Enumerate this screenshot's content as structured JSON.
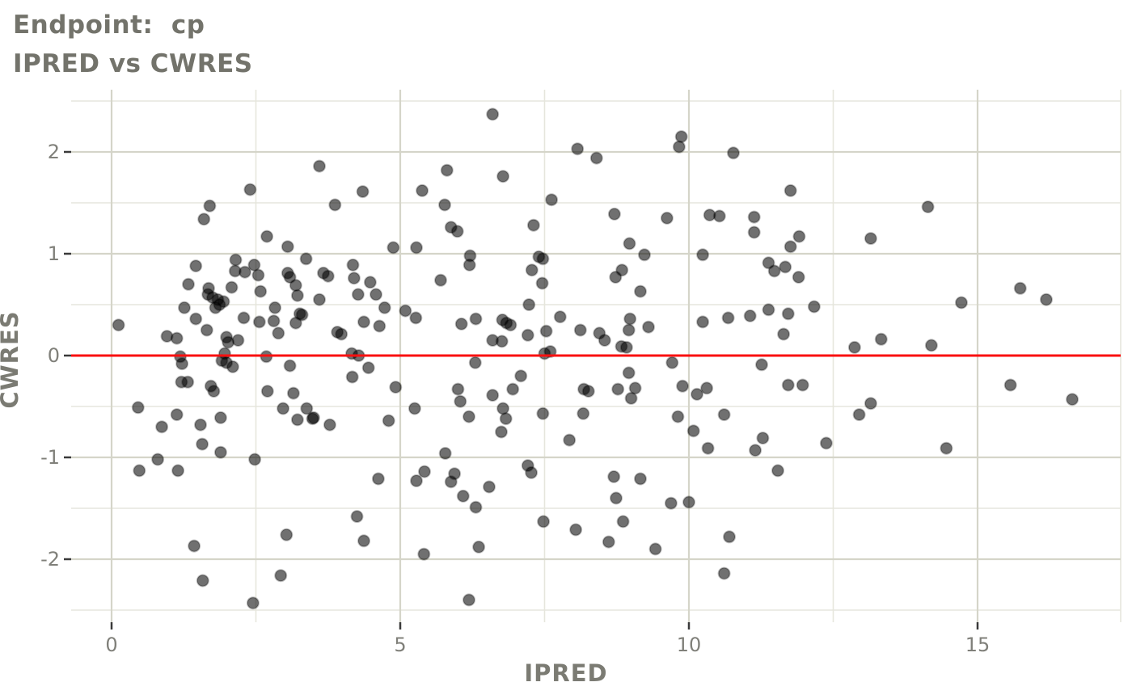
{
  "title": {
    "line1": "Endpoint:  cp",
    "line2": "IPRED vs CWRES"
  },
  "axes": {
    "x_label": "IPRED",
    "y_label": "CWRES",
    "x_tick_labels": [
      "0",
      "5",
      "10",
      "15"
    ],
    "y_tick_labels": [
      "2",
      "1",
      "0",
      "-1",
      "-2"
    ]
  },
  "colors": {
    "background": "#ffffff",
    "title_text": "#73736b",
    "axis_title_text": "#7b7b73",
    "tick_label_text": "#80807a",
    "tick_mark": "#3a3a3a",
    "grid_major": "#d5d5c9",
    "grid_minor": "#e6e6dd",
    "reference_line": "#fa1010",
    "point_fill": "#000000",
    "point_fill_opacity": 0.56,
    "point_stroke_opacity": 0.25
  },
  "chart_data": {
    "type": "scatter",
    "title": "Endpoint: cp",
    "subtitle": "IPRED vs CWRES",
    "xlabel": "IPRED",
    "ylabel": "CWRES",
    "xlim": [
      -0.74,
      17.47
    ],
    "ylim": [
      -2.61,
      2.61
    ],
    "grid": true,
    "legend": "none",
    "x_major_ticks": [
      0,
      5,
      10,
      15
    ],
    "x_minor_gridlines": [
      2.5,
      7.5,
      12.5,
      17.5
    ],
    "y_major_ticks": [
      2,
      1,
      0,
      -1,
      -2
    ],
    "y_minor_gridlines": [
      2.5,
      1.5,
      0.5,
      -0.5,
      -1.5,
      -2.5
    ],
    "reference_line_y": 0,
    "points": [
      [
        0.12,
        0.3
      ],
      [
        0.96,
        0.19
      ],
      [
        1.13,
        0.17
      ],
      [
        1.19,
        -0.01
      ],
      [
        1.22,
        -0.08
      ],
      [
        1.26,
        0.47
      ],
      [
        1.33,
        0.7
      ],
      [
        1.46,
        0.88
      ],
      [
        1.46,
        0.36
      ],
      [
        1.6,
        1.34
      ],
      [
        1.65,
        0.25
      ],
      [
        1.67,
        0.6
      ],
      [
        1.68,
        0.66
      ],
      [
        1.7,
        1.47
      ],
      [
        1.75,
        0.57
      ],
      [
        1.8,
        0.47
      ],
      [
        1.84,
        0.55
      ],
      [
        1.87,
        0.5
      ],
      [
        1.91,
        -0.05
      ],
      [
        1.94,
        0.53
      ],
      [
        1.96,
        0.02
      ],
      [
        1.99,
        0.18
      ],
      [
        1.99,
        -0.07
      ],
      [
        2.02,
        0.13
      ],
      [
        2.08,
        0.67
      ],
      [
        2.1,
        -0.11
      ],
      [
        2.14,
        0.83
      ],
      [
        2.15,
        0.94
      ],
      [
        2.19,
        0.15
      ],
      [
        2.29,
        0.37
      ],
      [
        2.31,
        0.82
      ],
      [
        2.4,
        1.63
      ],
      [
        2.47,
        0.89
      ],
      [
        2.54,
        0.79
      ],
      [
        2.56,
        0.33
      ],
      [
        2.58,
        0.63
      ],
      [
        2.68,
        -0.01
      ],
      [
        2.69,
        1.17
      ],
      [
        2.81,
        0.34
      ],
      [
        2.83,
        0.47
      ],
      [
        2.89,
        0.22
      ],
      [
        3.05,
        1.07
      ],
      [
        3.05,
        0.81
      ],
      [
        3.09,
        0.77
      ],
      [
        3.09,
        -0.1
      ],
      [
        3.19,
        0.69
      ],
      [
        3.19,
        0.32
      ],
      [
        3.22,
        0.59
      ],
      [
        3.26,
        0.41
      ],
      [
        3.3,
        0.4
      ],
      [
        3.37,
        0.95
      ],
      [
        3.6,
        1.86
      ],
      [
        3.6,
        0.55
      ],
      [
        3.67,
        0.81
      ],
      [
        3.75,
        0.78
      ],
      [
        3.87,
        1.48
      ],
      [
        3.91,
        0.23
      ],
      [
        3.98,
        0.21
      ],
      [
        4.16,
        0.02
      ],
      [
        4.28,
        0.0
      ],
      [
        4.18,
        0.89
      ],
      [
        4.2,
        0.76
      ],
      [
        4.27,
        0.6
      ],
      [
        4.35,
        1.61
      ],
      [
        4.37,
        0.33
      ],
      [
        4.45,
        -0.12
      ],
      [
        4.17,
        -0.21
      ],
      [
        4.48,
        0.72
      ],
      [
        4.58,
        0.6
      ],
      [
        4.64,
        0.29
      ],
      [
        4.73,
        0.47
      ],
      [
        4.88,
        1.06
      ],
      [
        5.09,
        0.44
      ],
      [
        5.28,
        1.06
      ],
      [
        5.27,
        0.37
      ],
      [
        1.21,
        -0.26
      ],
      [
        1.32,
        -0.26
      ],
      [
        1.72,
        -0.3
      ],
      [
        1.77,
        -0.35
      ],
      [
        2.7,
        -0.35
      ],
      [
        3.15,
        -0.37
      ],
      [
        4.92,
        -0.31
      ],
      [
        0.46,
        -0.51
      ],
      [
        2.97,
        -0.52
      ],
      [
        3.38,
        -0.52
      ],
      [
        3.22,
        -0.63
      ],
      [
        3.48,
        -0.62
      ],
      [
        3.5,
        -0.61
      ],
      [
        1.13,
        -0.58
      ],
      [
        0.87,
        -0.7
      ],
      [
        1.54,
        -0.68
      ],
      [
        1.89,
        -0.61
      ],
      [
        3.78,
        -0.68
      ],
      [
        4.8,
        -0.64
      ],
      [
        5.25,
        -0.52
      ],
      [
        1.57,
        -0.87
      ],
      [
        1.89,
        -0.95
      ],
      [
        0.8,
        -1.02
      ],
      [
        2.48,
        -1.02
      ],
      [
        0.48,
        -1.13
      ],
      [
        1.15,
        -1.13
      ],
      [
        4.62,
        -1.21
      ],
      [
        5.28,
        -1.23
      ],
      [
        4.25,
        -1.58
      ],
      [
        1.43,
        -1.87
      ],
      [
        3.03,
        -1.76
      ],
      [
        4.37,
        -1.82
      ],
      [
        1.58,
        -2.21
      ],
      [
        2.93,
        -2.16
      ],
      [
        2.45,
        -2.43
      ],
      [
        6.6,
        2.37
      ],
      [
        9.87,
        2.15
      ],
      [
        9.83,
        2.05
      ],
      [
        8.07,
        2.03
      ],
      [
        8.4,
        1.94
      ],
      [
        10.77,
        1.99
      ],
      [
        5.81,
        1.82
      ],
      [
        6.78,
        1.76
      ],
      [
        5.38,
        1.62
      ],
      [
        7.62,
        1.53
      ],
      [
        5.77,
        1.48
      ],
      [
        8.71,
        1.39
      ],
      [
        9.62,
        1.35
      ],
      [
        10.36,
        1.38
      ],
      [
        10.53,
        1.37
      ],
      [
        11.13,
        1.36
      ],
      [
        11.13,
        1.21
      ],
      [
        5.88,
        1.26
      ],
      [
        5.99,
        1.22
      ],
      [
        7.31,
        1.28
      ],
      [
        8.97,
        1.1
      ],
      [
        9.23,
        0.99
      ],
      [
        10.24,
        0.99
      ],
      [
        6.21,
        0.98
      ],
      [
        7.4,
        0.97
      ],
      [
        7.47,
        0.95
      ],
      [
        6.2,
        0.89
      ],
      [
        7.28,
        0.84
      ],
      [
        8.84,
        0.84
      ],
      [
        8.73,
        0.77
      ],
      [
        5.7,
        0.74
      ],
      [
        7.46,
        0.71
      ],
      [
        9.16,
        0.63
      ],
      [
        10.24,
        0.33
      ],
      [
        7.23,
        0.5
      ],
      [
        6.06,
        0.31
      ],
      [
        6.31,
        0.36
      ],
      [
        6.77,
        0.35
      ],
      [
        6.84,
        0.32
      ],
      [
        6.91,
        0.3
      ],
      [
        7.77,
        0.38
      ],
      [
        8.98,
        0.36
      ],
      [
        8.96,
        0.25
      ],
      [
        9.3,
        0.28
      ],
      [
        8.12,
        0.25
      ],
      [
        8.45,
        0.22
      ],
      [
        8.54,
        0.15
      ],
      [
        7.53,
        0.24
      ],
      [
        7.21,
        0.2
      ],
      [
        6.6,
        0.15
      ],
      [
        6.76,
        0.14
      ],
      [
        8.83,
        0.09
      ],
      [
        8.92,
        0.08
      ],
      [
        7.5,
        0.02
      ],
      [
        7.6,
        0.04
      ],
      [
        10.68,
        0.37
      ],
      [
        11.06,
        0.39
      ],
      [
        11.76,
        1.62
      ],
      [
        14.14,
        1.46
      ],
      [
        11.91,
        1.17
      ],
      [
        13.15,
        1.15
      ],
      [
        11.76,
        1.07
      ],
      [
        11.38,
        0.91
      ],
      [
        11.48,
        0.83
      ],
      [
        11.67,
        0.87
      ],
      [
        11.9,
        0.77
      ],
      [
        15.74,
        0.66
      ],
      [
        16.19,
        0.55
      ],
      [
        14.72,
        0.52
      ],
      [
        12.17,
        0.48
      ],
      [
        11.38,
        0.45
      ],
      [
        11.72,
        0.41
      ],
      [
        11.64,
        0.21
      ],
      [
        13.33,
        0.16
      ],
      [
        12.87,
        0.08
      ],
      [
        14.2,
        0.1
      ],
      [
        6.3,
        -0.07
      ],
      [
        9.71,
        -0.07
      ],
      [
        11.26,
        -0.09
      ],
      [
        8.96,
        -0.17
      ],
      [
        7.09,
        -0.2
      ],
      [
        6.0,
        -0.33
      ],
      [
        6.95,
        -0.33
      ],
      [
        6.6,
        -0.39
      ],
      [
        8.18,
        -0.33
      ],
      [
        8.26,
        -0.35
      ],
      [
        8.77,
        -0.33
      ],
      [
        9.07,
        -0.32
      ],
      [
        9.0,
        -0.42
      ],
      [
        9.89,
        -0.3
      ],
      [
        10.31,
        -0.32
      ],
      [
        10.14,
        -0.38
      ],
      [
        6.04,
        -0.45
      ],
      [
        6.19,
        -0.6
      ],
      [
        6.78,
        -0.52
      ],
      [
        6.83,
        -0.62
      ],
      [
        7.47,
        -0.57
      ],
      [
        8.17,
        -0.57
      ],
      [
        6.75,
        -0.75
      ],
      [
        7.93,
        -0.83
      ],
      [
        9.81,
        -0.6
      ],
      [
        10.61,
        -0.58
      ],
      [
        10.08,
        -0.74
      ],
      [
        10.33,
        -0.91
      ],
      [
        11.15,
        -0.93
      ],
      [
        11.28,
        -0.81
      ],
      [
        5.78,
        -0.96
      ],
      [
        5.42,
        -1.14
      ],
      [
        5.94,
        -1.16
      ],
      [
        5.88,
        -1.24
      ],
      [
        6.54,
        -1.29
      ],
      [
        6.09,
        -1.38
      ],
      [
        6.31,
        -1.49
      ],
      [
        7.21,
        -1.08
      ],
      [
        7.27,
        -1.15
      ],
      [
        8.7,
        -1.19
      ],
      [
        9.16,
        -1.21
      ],
      [
        8.74,
        -1.4
      ],
      [
        9.69,
        -1.45
      ],
      [
        10.0,
        -1.44
      ],
      [
        7.48,
        -1.63
      ],
      [
        8.86,
        -1.63
      ],
      [
        8.04,
        -1.71
      ],
      [
        8.61,
        -1.83
      ],
      [
        9.42,
        -1.9
      ],
      [
        10.7,
        -1.78
      ],
      [
        6.36,
        -1.88
      ],
      [
        5.41,
        -1.95
      ],
      [
        10.61,
        -2.14
      ],
      [
        6.19,
        -2.4
      ],
      [
        11.72,
        -0.29
      ],
      [
        11.97,
        -0.29
      ],
      [
        15.57,
        -0.29
      ],
      [
        13.15,
        -0.47
      ],
      [
        16.64,
        -0.43
      ],
      [
        12.95,
        -0.58
      ],
      [
        12.38,
        -0.86
      ],
      [
        14.46,
        -0.91
      ],
      [
        11.54,
        -1.13
      ]
    ]
  }
}
